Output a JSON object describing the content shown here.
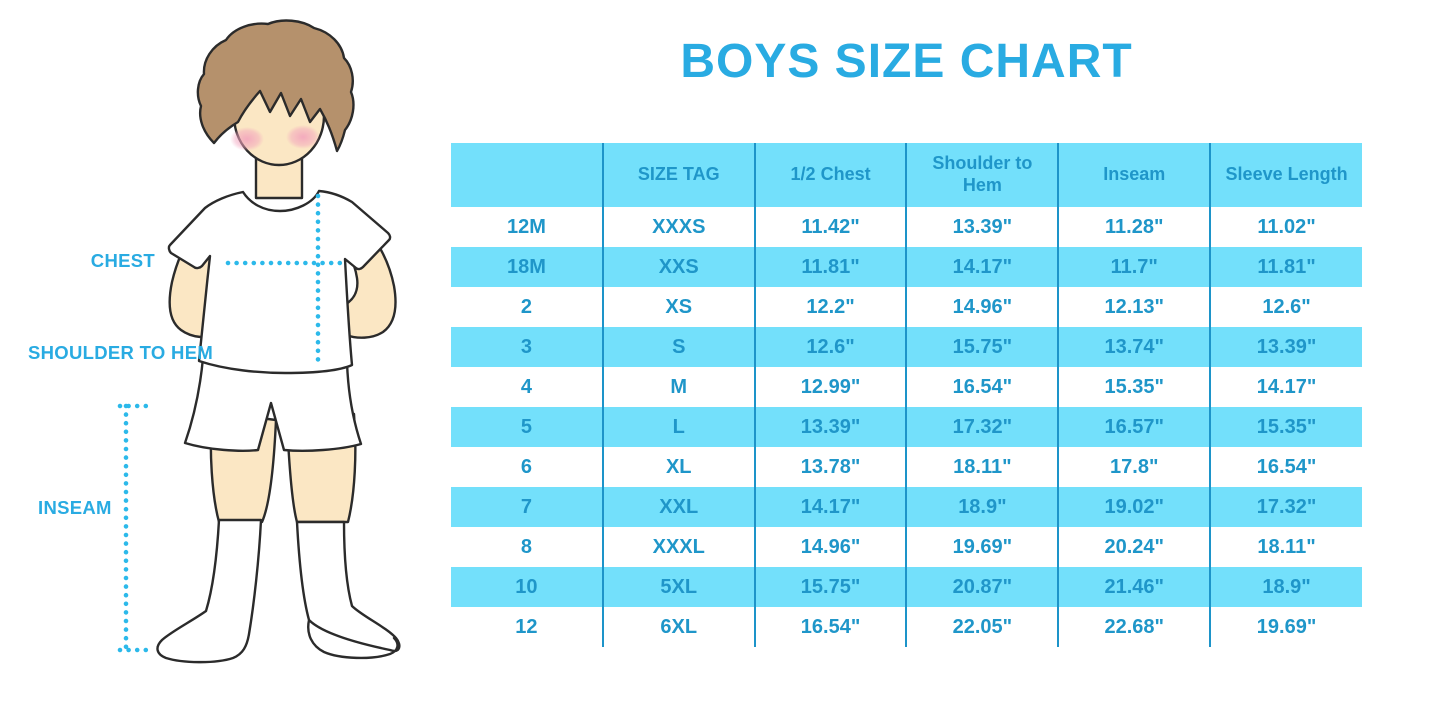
{
  "figure": {
    "labels": [
      {
        "id": "chest",
        "text": "CHEST"
      },
      {
        "id": "shoulder_to_hem",
        "text": "SHOULDER TO HEM"
      },
      {
        "id": "inseam",
        "text": "INSEAM"
      }
    ]
  },
  "colors": {
    "accent": "#29ABE2",
    "table_text": "#1F96C9",
    "row_highlight": "#73E0FB",
    "divider": "#1D94C9",
    "dotted_line": "#2CB9EA",
    "skin": "#FBE7C4",
    "hair": "#B5916C",
    "outline": "#2B2B2B",
    "background": "#FFFFFF"
  },
  "chart_data": {
    "type": "table",
    "title": "BOYS SIZE CHART",
    "columns": [
      "",
      "SIZE TAG",
      "1/2 Chest",
      "Shoulder to Hem",
      "Inseam",
      "Sleeve Length"
    ],
    "rows": [
      [
        "12M",
        "XXXS",
        "11.42\"",
        "13.39\"",
        "11.28\"",
        "11.02\""
      ],
      [
        "18M",
        "XXS",
        "11.81\"",
        "14.17\"",
        "11.7\"",
        "11.81\""
      ],
      [
        "2",
        "XS",
        "12.2\"",
        "14.96\"",
        "12.13\"",
        "12.6\""
      ],
      [
        "3",
        "S",
        "12.6\"",
        "15.75\"",
        "13.74\"",
        "13.39\""
      ],
      [
        "4",
        "M",
        "12.99\"",
        "16.54\"",
        "15.35\"",
        "14.17\""
      ],
      [
        "5",
        "L",
        "13.39\"",
        "17.32\"",
        "16.57\"",
        "15.35\""
      ],
      [
        "6",
        "XL",
        "13.78\"",
        "18.11\"",
        "17.8\"",
        "16.54\""
      ],
      [
        "7",
        "XXL",
        "14.17\"",
        "18.9\"",
        "19.02\"",
        "17.32\""
      ],
      [
        "8",
        "XXXL",
        "14.96\"",
        "19.69\"",
        "20.24\"",
        "18.11\""
      ],
      [
        "10",
        "5XL",
        "15.75\"",
        "20.87\"",
        "21.46\"",
        "18.9\""
      ],
      [
        "12",
        "6XL",
        "16.54\"",
        "22.05\"",
        "22.68\"",
        "19.69\""
      ]
    ],
    "striped_rows": "white/blue alternating, header blue"
  }
}
